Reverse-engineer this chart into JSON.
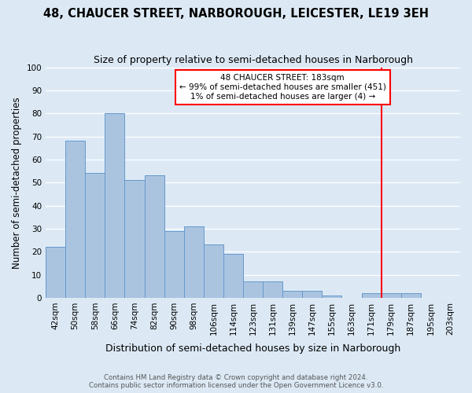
{
  "title": "48, CHAUCER STREET, NARBOROUGH, LEICESTER, LE19 3EH",
  "subtitle": "Size of property relative to semi-detached houses in Narborough",
  "xlabel": "Distribution of semi-detached houses by size in Narborough",
  "ylabel": "Number of semi-detached properties",
  "footer_line1": "Contains HM Land Registry data © Crown copyright and database right 2024.",
  "footer_line2": "Contains public sector information licensed under the Open Government Licence v3.0.",
  "bin_labels": [
    "42sqm",
    "50sqm",
    "58sqm",
    "66sqm",
    "74sqm",
    "82sqm",
    "90sqm",
    "98sqm",
    "106sqm",
    "114sqm",
    "123sqm",
    "131sqm",
    "139sqm",
    "147sqm",
    "155sqm",
    "163sqm",
    "171sqm",
    "179sqm",
    "187sqm",
    "195sqm",
    "203sqm"
  ],
  "bar_values": [
    22,
    68,
    54,
    80,
    51,
    53,
    29,
    31,
    23,
    19,
    7,
    7,
    3,
    3,
    1,
    0,
    2,
    2,
    2,
    0,
    0
  ],
  "bar_color": "#aac4e0",
  "bar_edge_color": "#6699cc",
  "property_bin_index": 17,
  "red_line_label": "48 CHAUCER STREET: 183sqm",
  "annotation_line2": "← 99% of semi-detached houses are smaller (451)",
  "annotation_line3": "1% of semi-detached houses are larger (4) →",
  "ylim": [
    0,
    100
  ],
  "yticks": [
    0,
    10,
    20,
    30,
    40,
    50,
    60,
    70,
    80,
    90,
    100
  ],
  "background_color": "#dce9f5",
  "plot_bg_color": "#dce9f5",
  "grid_color": "#ffffff",
  "title_fontsize": 10.5,
  "subtitle_fontsize": 9,
  "xlabel_fontsize": 9,
  "ylabel_fontsize": 8.5,
  "tick_fontsize": 7.5,
  "annotation_fontsize": 7.5
}
